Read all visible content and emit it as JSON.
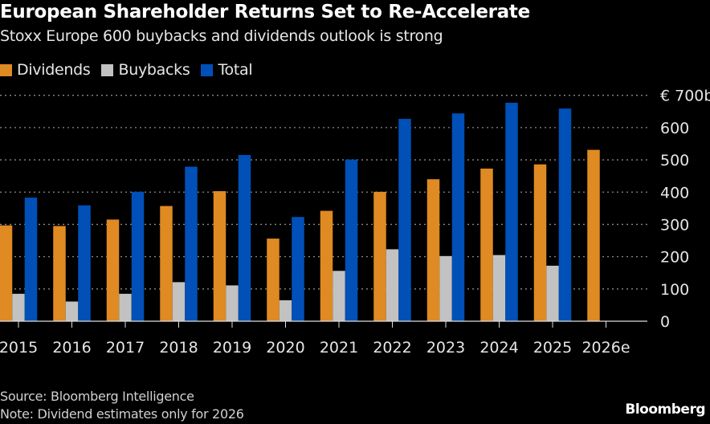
{
  "chart_data": {
    "type": "bar",
    "title": "European Shareholder Returns Set to Re-Accelerate",
    "subtitle": "Stoxx Europe 600 buybacks and dividends outlook is strong",
    "categories": [
      "2015",
      "2016",
      "2017",
      "2018",
      "2019",
      "2020",
      "2021",
      "2022",
      "2023",
      "2024",
      "2025",
      "2026e"
    ],
    "series": [
      {
        "name": "Dividends",
        "color": "#df8a22",
        "values": [
          297,
          295,
          315,
          357,
          403,
          256,
          342,
          401,
          440,
          473,
          486,
          531
        ]
      },
      {
        "name": "Buybacks",
        "color": "#c2c2c2",
        "values": [
          85,
          61,
          85,
          121,
          111,
          65,
          156,
          223,
          202,
          205,
          172,
          null
        ]
      },
      {
        "name": "Total",
        "color": "#0050b8",
        "values": [
          383,
          359,
          401,
          479,
          515,
          323,
          501,
          627,
          644,
          677,
          659,
          null
        ]
      }
    ],
    "ylim": [
      0,
      700
    ],
    "yticks": [
      "0",
      "100",
      "200",
      "300",
      "400",
      "500",
      "600",
      "€ 700b"
    ],
    "ytick_values": [
      0,
      100,
      200,
      300,
      400,
      500,
      600,
      700
    ],
    "grid": true,
    "y_axis_side": "right",
    "legend_placement": "top-left"
  },
  "footer": {
    "source": "Source: Bloomberg Intelligence",
    "note": "Note: Dividend estimates only for 2026",
    "logo": "Bloomberg"
  }
}
